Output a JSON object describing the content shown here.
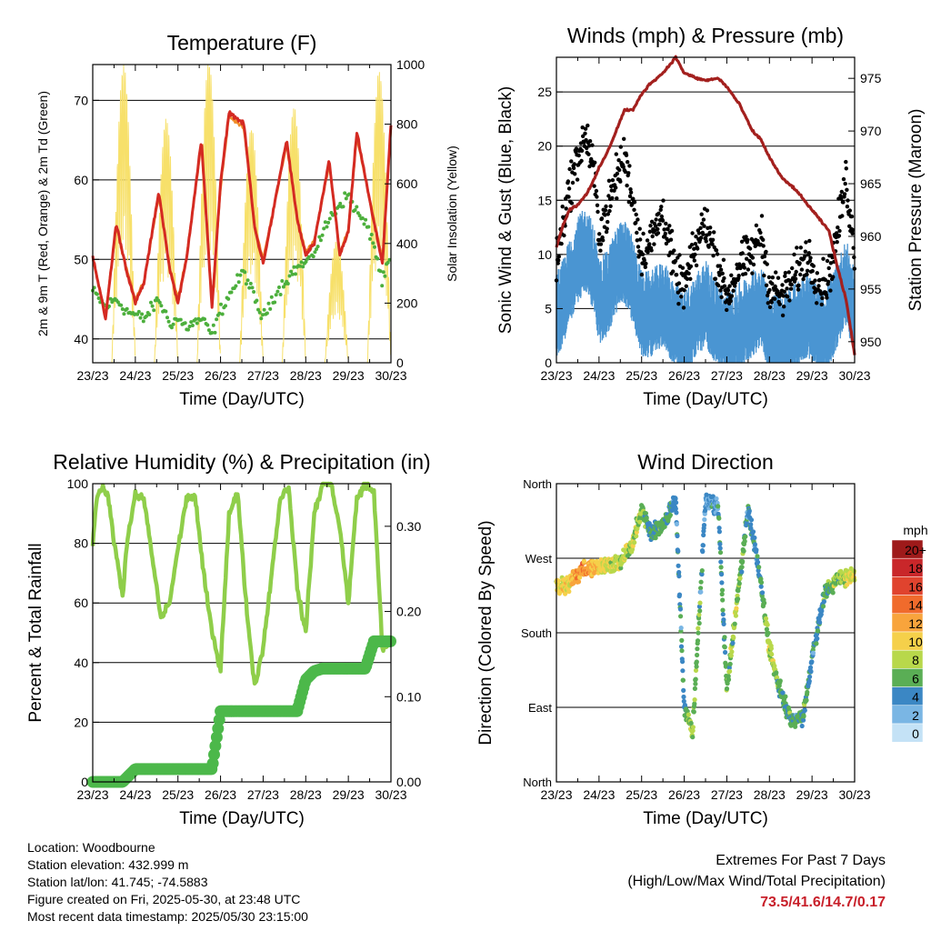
{
  "colors": {
    "temp_red": "#d42a22",
    "temp_orange": "#f08c28",
    "dewpoint_green": "#4caf3c",
    "solar_yellow": "#f7e06a",
    "gust_black": "#000000",
    "wind_blue": "#4a95d2",
    "pressure_maroon": "#a3201e",
    "rh_green": "#8fce4a",
    "precip_green": "#4cb84a",
    "extremes_red": "#c8202a"
  },
  "x_tick_labels": [
    "23/23",
    "24/23",
    "25/23",
    "26/23",
    "27/23",
    "28/23",
    "29/23",
    "30/23"
  ],
  "chart_data": [
    {
      "type": "line",
      "title": "Temperature (F)",
      "xlabel": "Time (Day/UTC)",
      "ylabel": "2m & 9m T (Red, Orange) & 2m Td (Green)",
      "y2label": "Solar Insolation (Yellow)",
      "x": [
        23.0,
        23.3,
        23.55,
        23.8,
        24.0,
        24.2,
        24.55,
        24.8,
        25.0,
        25.2,
        25.55,
        25.8,
        26.0,
        26.2,
        26.55,
        26.8,
        27.0,
        27.2,
        27.55,
        27.8,
        28.0,
        28.2,
        28.55,
        28.8,
        29.0,
        29.2,
        29.55,
        29.8,
        30.0
      ],
      "ylim": [
        37,
        74.5
      ],
      "y2lim": [
        0,
        1000
      ],
      "yticks": [
        40,
        50,
        60,
        70
      ],
      "y2ticks": [
        0,
        200,
        400,
        600,
        800,
        1000
      ],
      "grid": true,
      "series": [
        {
          "name": "2m T",
          "color": "temp_red",
          "values": [
            50.5,
            42.5,
            54.5,
            48.5,
            44.5,
            47.0,
            58.5,
            49.0,
            44.5,
            50.0,
            65.0,
            44.0,
            59.5,
            68.5,
            67.0,
            54.0,
            49.5,
            55.0,
            65.0,
            55.0,
            50.5,
            52.0,
            62.5,
            50.5,
            53.5,
            66.0,
            56.0,
            49.5,
            67.0
          ]
        },
        {
          "name": "9m T",
          "color": "temp_orange",
          "values": [
            50.0,
            43.0,
            54.0,
            48.8,
            45.0,
            47.2,
            58.0,
            49.3,
            45.0,
            50.2,
            64.5,
            44.5,
            59.0,
            68.0,
            66.5,
            54.3,
            50.0,
            55.2,
            64.5,
            55.2,
            51.0,
            52.3,
            62.0,
            50.8,
            53.8,
            65.5,
            56.2,
            50.0,
            66.5
          ]
        },
        {
          "name": "2m Td",
          "color": "dewpoint_green",
          "values": [
            46.0,
            44.0,
            45.0,
            43.5,
            43.0,
            42.5,
            45.0,
            42.0,
            42.5,
            41.5,
            42.5,
            40.5,
            43.5,
            45.5,
            48.5,
            45.0,
            42.5,
            45.0,
            47.5,
            49.0,
            49.5,
            51.0,
            55.0,
            57.0,
            58.0,
            56.0,
            53.0,
            47.0,
            50.5
          ]
        }
      ],
      "solar_max_per_day": [
        1000,
        820,
        1010,
        790,
        860,
        410,
        980
      ]
    },
    {
      "type": "line",
      "title": "Winds (mph) & Pressure (mb)",
      "xlabel": "Time (Day/UTC)",
      "ylabel": "Sonic Wind & Gust (Blue, Black)",
      "y2label": "Station Pressure (Maroon)",
      "x": [
        23.0,
        23.15,
        23.3,
        23.5,
        23.7,
        23.9,
        24.0,
        24.2,
        24.4,
        24.6,
        24.8,
        25.0,
        25.2,
        25.5,
        25.8,
        26.0,
        26.3,
        26.5,
        26.8,
        27.0,
        27.3,
        27.6,
        27.8,
        28.0,
        28.3,
        28.6,
        28.9,
        29.2,
        29.4,
        29.6,
        29.8,
        30.0
      ],
      "ylim": [
        0,
        28.2
      ],
      "y2lim": [
        948.0,
        977.0
      ],
      "yticks": [
        0,
        5,
        10,
        15,
        20,
        25
      ],
      "y2ticks": [
        950,
        955,
        960,
        965,
        970,
        975
      ],
      "grid": true,
      "series": [
        {
          "name": "Gust",
          "color": "gust_black",
          "values": [
            9,
            13,
            16,
            19,
            21,
            17,
            12,
            14,
            17,
            19,
            15,
            10,
            11,
            14,
            8,
            7,
            11,
            13,
            9,
            6,
            9,
            10,
            12,
            7,
            6,
            8,
            10,
            7,
            8,
            12,
            17,
            10
          ]
        },
        {
          "name": "Wind",
          "color": "wind_blue",
          "values": [
            5,
            6,
            8,
            10,
            11,
            9,
            6,
            7,
            9,
            10,
            8,
            5,
            5,
            6,
            4,
            3,
            5,
            6,
            4,
            3,
            4,
            5,
            6,
            3,
            3,
            4,
            5,
            3,
            4,
            6,
            8,
            5
          ]
        },
        {
          "name": "Pressure",
          "color": "pressure_maroon",
          "values": [
            959.0,
            961.0,
            962.5,
            963.0,
            964.0,
            965.5,
            966.5,
            968.0,
            970.0,
            972.0,
            972.0,
            973.5,
            974.5,
            975.5,
            977.0,
            975.5,
            975.0,
            974.8,
            975.0,
            974.2,
            972.5,
            970.0,
            969.2,
            967.5,
            965.5,
            964.5,
            963.0,
            961.5,
            960.5,
            957.0,
            954.0,
            948.8
          ]
        }
      ]
    },
    {
      "type": "line",
      "title": "Relative Humidity (%) & Precipitation (in)",
      "xlabel": "Time (Day/UTC)",
      "ylabel": "Percent & Total Rainfall",
      "x": [
        23.0,
        23.1,
        23.25,
        23.4,
        23.5,
        23.6,
        23.7,
        23.8,
        24.0,
        24.2,
        24.4,
        24.6,
        24.8,
        25.0,
        25.2,
        25.4,
        25.6,
        25.8,
        26.0,
        26.2,
        26.4,
        26.6,
        26.8,
        27.0,
        27.2,
        27.4,
        27.6,
        27.8,
        28.0,
        28.2,
        28.4,
        28.6,
        28.8,
        29.0,
        29.2,
        29.4,
        29.6,
        29.8,
        30.0
      ],
      "ylim": [
        0,
        100
      ],
      "y2lim": [
        0,
        0.35
      ],
      "yticks": [
        0,
        20,
        40,
        60,
        80,
        100
      ],
      "y2ticks": [
        0.0,
        0.1,
        0.2,
        0.3
      ],
      "y2ticklabels": [
        "0.00",
        "0.10",
        "0.20",
        "0.30"
      ],
      "grid": true,
      "series": [
        {
          "name": "RH",
          "color": "rh_green",
          "values": [
            80,
            96,
            99,
            93,
            80,
            72,
            62,
            80,
            96,
            95,
            75,
            55,
            60,
            78,
            95,
            96,
            70,
            50,
            38,
            90,
            97,
            60,
            32,
            45,
            70,
            95,
            99,
            65,
            50,
            90,
            100,
            100,
            85,
            60,
            95,
            100,
            97,
            45,
            47
          ]
        },
        {
          "name": "Precipitation",
          "color": "precip_green",
          "values": [
            0.0,
            0.0,
            0.0,
            0.0,
            0.0,
            0.0,
            0.0,
            0.005,
            0.015,
            0.015,
            0.015,
            0.015,
            0.015,
            0.015,
            0.015,
            0.015,
            0.015,
            0.015,
            0.083,
            0.083,
            0.083,
            0.083,
            0.083,
            0.083,
            0.083,
            0.083,
            0.083,
            0.083,
            0.12,
            0.13,
            0.133,
            0.133,
            0.133,
            0.133,
            0.133,
            0.133,
            0.165,
            0.165,
            0.165
          ]
        }
      ]
    },
    {
      "type": "scatter",
      "title": "Wind Direction",
      "xlabel": "Time (Day/UTC)",
      "ylabel": "Direction (Colored By Speed)",
      "ytick_labels": [
        "North",
        "East",
        "South",
        "West",
        "North"
      ],
      "ylim": [
        0,
        360
      ],
      "grid": true,
      "x": [
        23.0,
        23.3,
        23.6,
        23.9,
        24.2,
        24.5,
        24.8,
        25.0,
        25.2,
        25.5,
        25.8,
        26.0,
        26.2,
        26.5,
        26.8,
        27.0,
        27.2,
        27.5,
        27.8,
        28.0,
        28.2,
        28.5,
        28.8,
        29.0,
        29.3,
        29.6,
        29.9
      ],
      "direction_deg": [
        235,
        240,
        255,
        260,
        262,
        265,
        290,
        330,
        300,
        310,
        340,
        90,
        60,
        340,
        330,
        110,
        200,
        330,
        240,
        160,
        120,
        75,
        80,
        150,
        230,
        245,
        250
      ],
      "speed_mph": [
        9,
        10,
        13,
        11,
        9,
        8,
        8,
        7,
        5,
        6,
        4,
        5,
        8,
        3,
        4,
        6,
        8,
        4,
        5,
        8,
        6,
        5,
        6,
        4,
        5,
        7,
        9
      ],
      "legend": {
        "title": "mph",
        "labels": [
          "20+",
          "18",
          "16",
          "14",
          "12",
          "10",
          "8",
          "6",
          "4",
          "2",
          "0"
        ],
        "colors": [
          "#9e1a1a",
          "#c9272a",
          "#e0432e",
          "#f06b2c",
          "#f8a43c",
          "#f5d04a",
          "#b8d84b",
          "#5aae55",
          "#3b87c4",
          "#7ab6e4",
          "#c4e2f6"
        ],
        "placement": "right"
      }
    }
  ],
  "footer": {
    "location": "Location: Woodbourne",
    "elevation": "Station elevation: 432.999 m",
    "latlon": "Station lat/lon: 41.745; -74.5883",
    "created": "Figure created on Fri, 2025-05-30, at 23:48 UTC",
    "recent": "Most recent data timestamp: 2025/05/30 23:15:00"
  },
  "extremes": {
    "heading": "Extremes For Past 7 Days",
    "subheading": "(High/Low/Max Wind/Total Precipitation)",
    "values": "73.5/41.6/14.7/0.17"
  }
}
